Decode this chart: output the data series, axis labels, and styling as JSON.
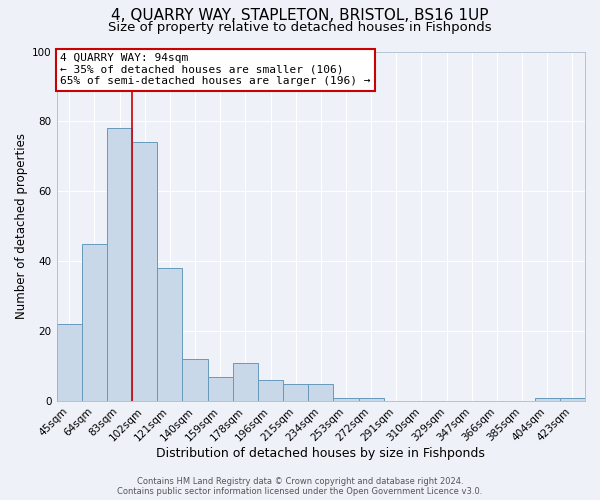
{
  "title": "4, QUARRY WAY, STAPLETON, BRISTOL, BS16 1UP",
  "subtitle": "Size of property relative to detached houses in Fishponds",
  "xlabel": "Distribution of detached houses by size in Fishponds",
  "ylabel": "Number of detached properties",
  "bar_labels": [
    "45sqm",
    "64sqm",
    "83sqm",
    "102sqm",
    "121sqm",
    "140sqm",
    "159sqm",
    "178sqm",
    "196sqm",
    "215sqm",
    "234sqm",
    "253sqm",
    "272sqm",
    "291sqm",
    "310sqm",
    "329sqm",
    "347sqm",
    "366sqm",
    "385sqm",
    "404sqm",
    "423sqm"
  ],
  "bar_values": [
    22,
    45,
    78,
    74,
    38,
    12,
    7,
    11,
    6,
    5,
    5,
    1,
    1,
    0,
    0,
    0,
    0,
    0,
    0,
    1,
    1
  ],
  "bar_color": "#c8d8e8",
  "bar_edge_color": "#6699bb",
  "background_color": "#eef2f8",
  "grid_color": "#ffffff",
  "ylim": [
    0,
    100
  ],
  "property_line_color": "#cc0000",
  "annotation_title": "4 QUARRY WAY: 94sqm",
  "annotation_line1": "← 35% of detached houses are smaller (106)",
  "annotation_line2": "65% of semi-detached houses are larger (196) →",
  "annotation_box_color": "#cc0000",
  "footer_line1": "Contains HM Land Registry data © Crown copyright and database right 2024.",
  "footer_line2": "Contains public sector information licensed under the Open Government Licence v3.0.",
  "title_fontsize": 11,
  "subtitle_fontsize": 9.5,
  "xlabel_fontsize": 9,
  "ylabel_fontsize": 8.5,
  "tick_fontsize": 7.5,
  "annotation_fontsize": 8,
  "footer_fontsize": 6
}
